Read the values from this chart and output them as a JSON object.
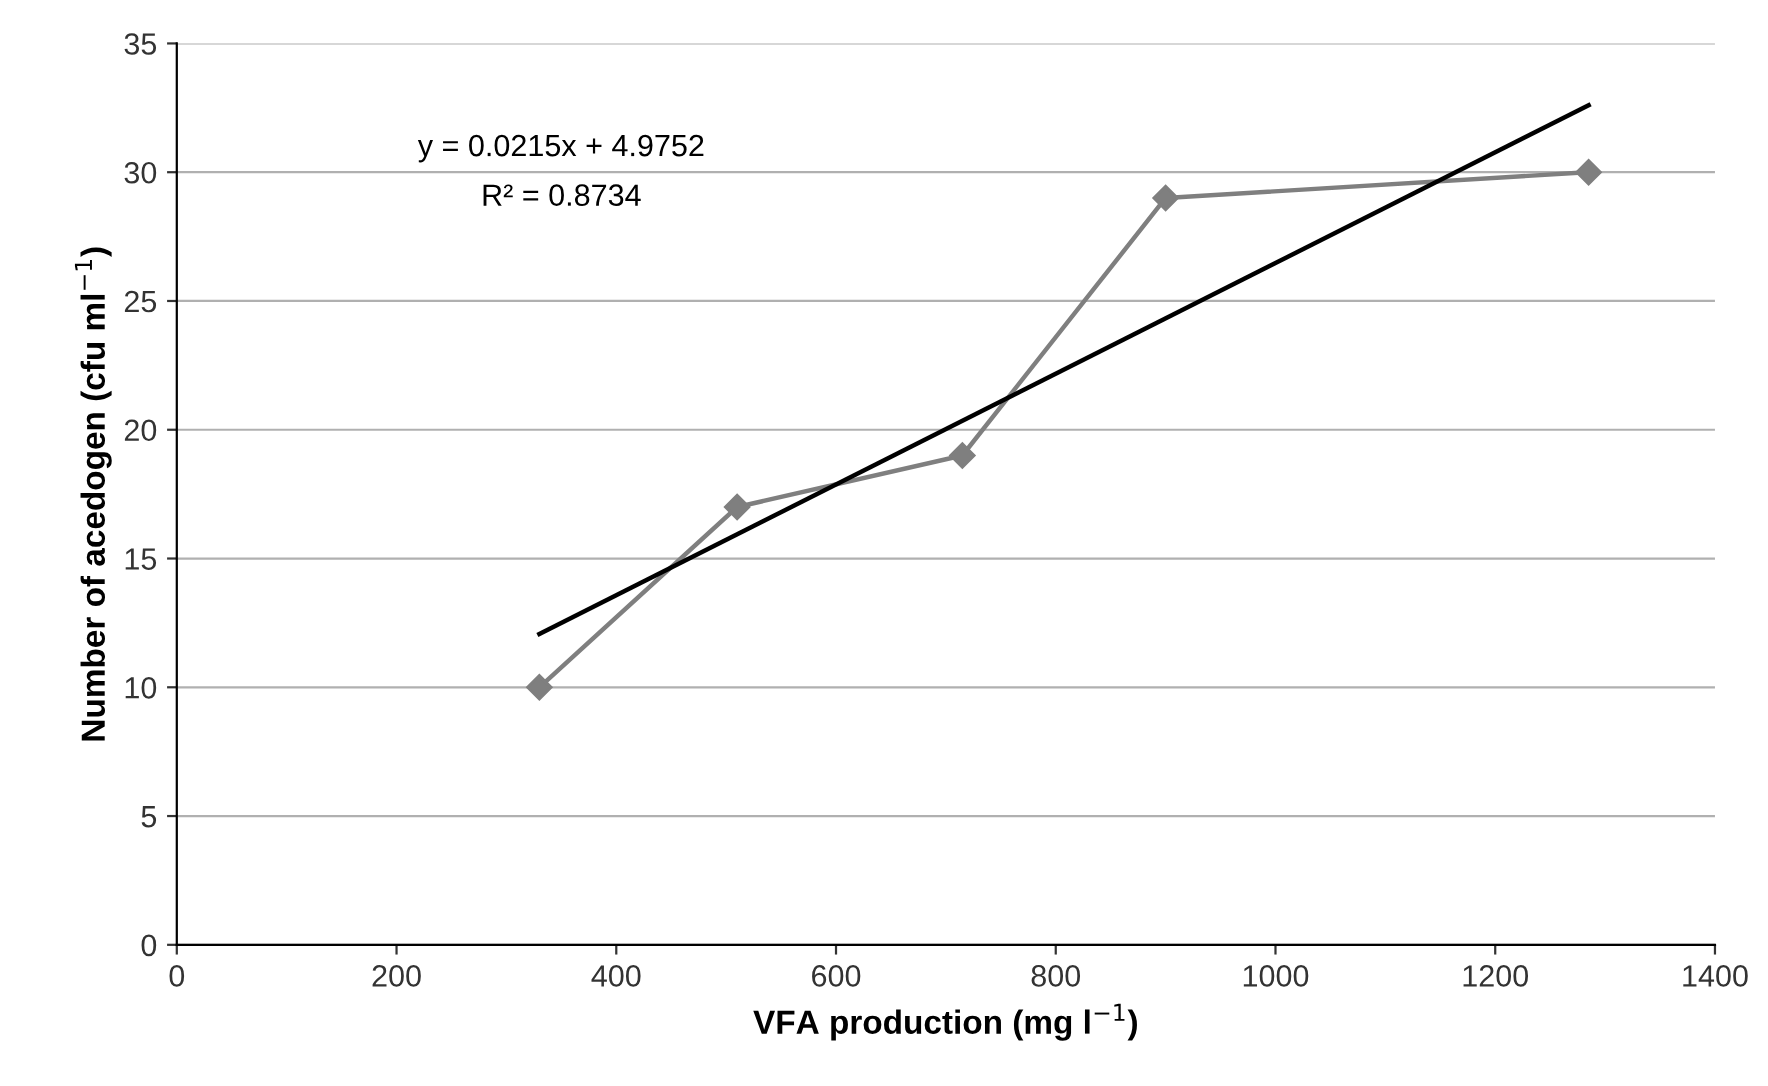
{
  "chart_data": {
    "type": "line",
    "xlabel": "VFA production (mg l$^{−1}$)",
    "ylabel": "Number of acedogen (cfu ml$^{−1}$)",
    "series": [
      {
        "color": "#7f7f7f",
        "marker": "diamond",
        "x": [
          330,
          510,
          715,
          900,
          1285
        ],
        "values": [
          10,
          17,
          19,
          29,
          30
        ]
      },
      {
        "color": "#000000",
        "marker": "none",
        "x": [
          330,
          1285
        ],
        "values": [
          12.07,
          32.6
        ]
      }
    ],
    "annotations": [
      "y = 0.0215x + 4.9752",
      "R² = 0.8734"
    ],
    "xlim": [
      0,
      1400
    ],
    "xticks": [
      0,
      200,
      400,
      600,
      800,
      1000,
      1200,
      1400
    ],
    "ylim": [
      0,
      35
    ],
    "yticks": [
      0,
      5,
      10,
      15,
      20,
      25,
      30,
      35
    ],
    "grid": "y",
    "legend": false
  }
}
